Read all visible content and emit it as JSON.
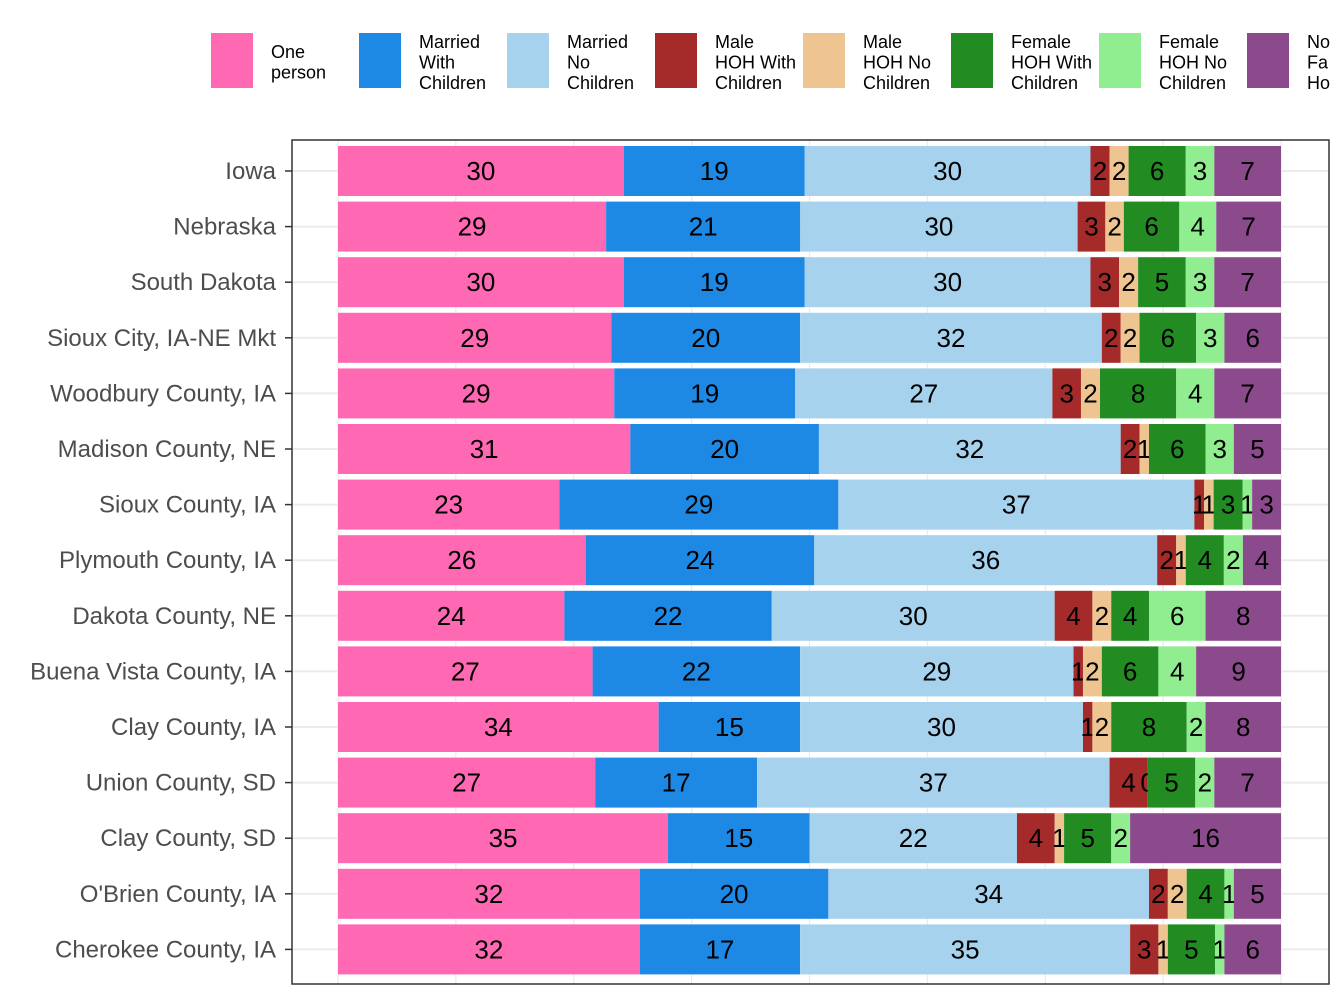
{
  "chart_data": {
    "type": "bar",
    "orientation": "horizontal",
    "stacked": true,
    "unit_note": "",
    "legend_position": "top",
    "grid": true,
    "categories": [
      "Iowa",
      "Nebraska",
      "South Dakota",
      "Sioux City, IA-NE Mkt",
      "Woodbury County, IA",
      "Madison County, NE",
      "Sioux County, IA",
      "Plymouth County, IA",
      "Dakota County, NE",
      "Buena Vista County, IA",
      "Clay County, IA",
      "Union County, SD",
      "Clay County, SD",
      "O'Brien County, IA",
      "Cherokee County, IA"
    ],
    "series": [
      {
        "name": "One person",
        "color": "#FF69B4",
        "values": [
          30,
          29,
          30,
          29,
          29,
          31,
          23,
          26,
          24,
          27,
          34,
          27,
          35,
          32,
          32
        ]
      },
      {
        "name": "Married With Children",
        "color": "#1E88E5",
        "values": [
          19,
          21,
          19,
          20,
          19,
          20,
          29,
          24,
          22,
          22,
          15,
          17,
          15,
          20,
          17
        ]
      },
      {
        "name": "Married No Children",
        "color": "#A6D2EE",
        "values": [
          30,
          30,
          30,
          32,
          27,
          32,
          37,
          36,
          30,
          29,
          30,
          37,
          22,
          34,
          35
        ]
      },
      {
        "name": "Male HOH With Children",
        "color": "#A52A2A",
        "values": [
          2,
          3,
          3,
          2,
          3,
          2,
          1,
          2,
          4,
          1,
          1,
          4,
          4,
          2,
          3
        ]
      },
      {
        "name": "Male HOH No Children",
        "color": "#EEC591",
        "values": [
          2,
          2,
          2,
          2,
          2,
          1,
          1,
          1,
          2,
          2,
          2,
          0,
          1,
          2,
          1
        ]
      },
      {
        "name": "Female HOH With Children",
        "color": "#228B22",
        "values": [
          6,
          6,
          5,
          6,
          8,
          6,
          3,
          4,
          4,
          6,
          8,
          5,
          5,
          4,
          5
        ]
      },
      {
        "name": "Female HOH No Children",
        "color": "#90EE90",
        "values": [
          3,
          4,
          3,
          3,
          4,
          3,
          1,
          2,
          6,
          4,
          2,
          2,
          2,
          1,
          1
        ]
      },
      {
        "name": "Non Family Households",
        "color": "#8B4A8B",
        "values": [
          7,
          7,
          7,
          6,
          7,
          5,
          3,
          4,
          8,
          9,
          8,
          7,
          16,
          5,
          6
        ]
      }
    ],
    "legend_lines": [
      [
        "One",
        "person"
      ],
      [
        "Married",
        "With",
        "Children"
      ],
      [
        "Married",
        "No",
        "Children"
      ],
      [
        "Male",
        "HOH With",
        "Children"
      ],
      [
        "Male",
        "HOH No",
        "Children"
      ],
      [
        "Female",
        "HOH With",
        "Children"
      ],
      [
        "Female",
        "HOH No",
        "Children"
      ],
      [
        "No",
        "Fa",
        "Ho"
      ]
    ]
  }
}
